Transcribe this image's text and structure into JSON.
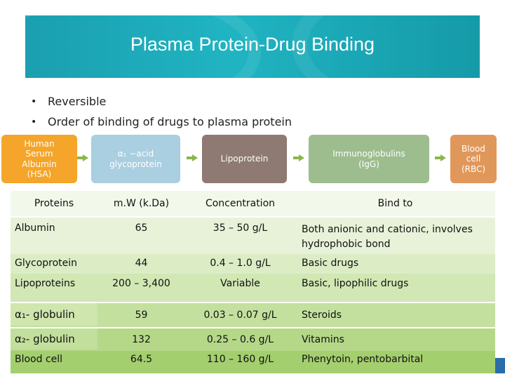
{
  "slide": {
    "title": "Plasma Protein-Drug Binding",
    "bullets": [
      "Reversible",
      "Order of binding of drugs to plasma protein"
    ]
  },
  "flow": [
    {
      "label": "Human\nSerum\nAlbumin\n(HSA)",
      "color": "#f4a52a"
    },
    {
      "label": "α₁ −acid\nglycoprotein",
      "color": "#a9cfe0"
    },
    {
      "label": "Lipoprotein",
      "color": "#8e7a72"
    },
    {
      "label": "Immunoglobulins\n(IgG)",
      "color": "#9dbd8f"
    },
    {
      "label": "Blood\ncell\n(RBC)",
      "color": "#e0975a"
    }
  ],
  "table": {
    "headers": [
      "Proteins",
      "m.W (k.Da)",
      "Concentration",
      "Bind to"
    ],
    "rows": [
      [
        "Albumin",
        "65",
        "35 – 50 g/L",
        "Both anionic and cationic, involves hydrophobic bond"
      ],
      [
        "Glycoprotein",
        "44",
        "0.4 – 1.0 g/L",
        "Basic drugs"
      ],
      [
        "Lipoproteins",
        "200 – 3,400",
        "Variable",
        "Basic, lipophilic drugs"
      ],
      [
        "α₁- globulin",
        "59",
        "0.03 – 0.07 g/L",
        "Steroids"
      ],
      [
        "α₂- globulin",
        "132",
        "0.25 – 0.6 g/L",
        "Vitamins"
      ],
      [
        "Blood cell",
        "64.5",
        "110 – 160 g/L",
        "Phenytoin, pentobarbital"
      ]
    ]
  },
  "colors": {
    "banner": "#1aa6b6",
    "table_top": "#f3f9ea",
    "table_bottom": "#9ccc5a",
    "arrow": "#8ab64a"
  }
}
